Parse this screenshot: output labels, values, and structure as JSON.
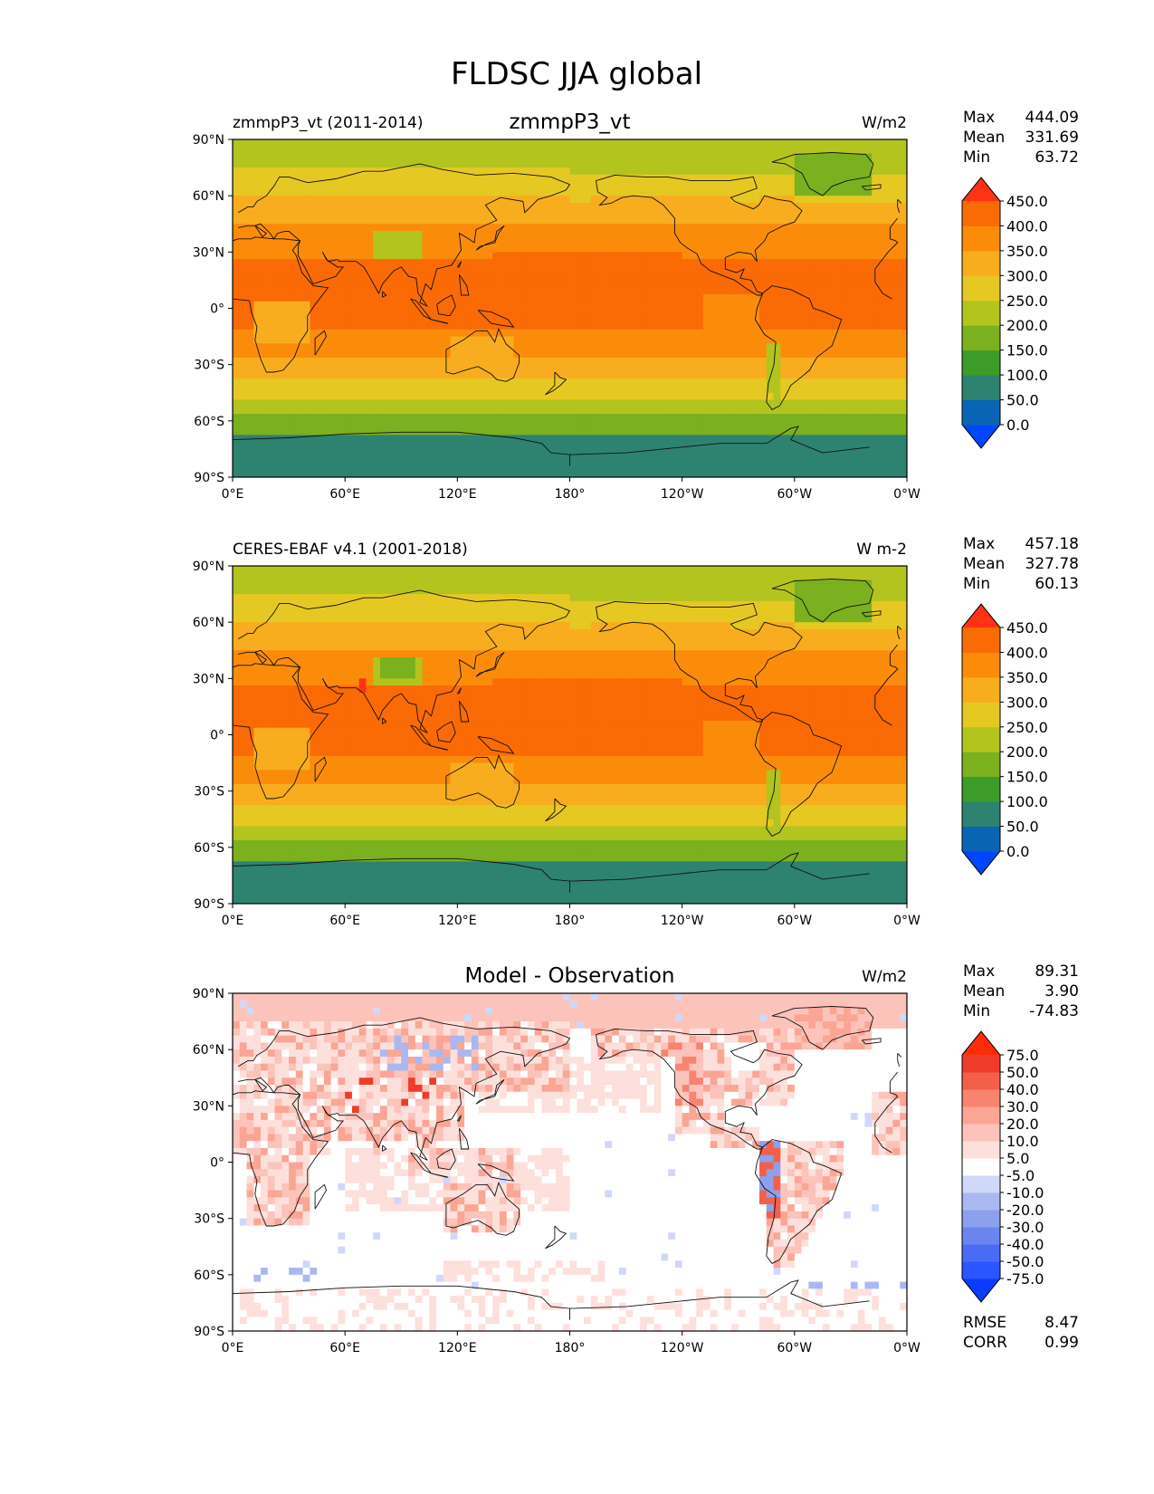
{
  "title": "FLDSC JJA global",
  "chart_data": [
    {
      "type": "heatmap",
      "id": "test",
      "title": "zmmpP3_vt",
      "left_label": "zmmpP3_vt (2011-2014)",
      "right_label": "W/m2",
      "stats": {
        "max_label": "Max",
        "max": "444.09",
        "mean_label": "Mean",
        "mean": "331.69",
        "min_label": "Min",
        "min": "63.72"
      },
      "colorbar": {
        "levels": [
          "0.0",
          "50.0",
          "100.0",
          "150.0",
          "200.0",
          "250.0",
          "300.0",
          "350.0",
          "400.0",
          "450.0"
        ],
        "colors": [
          "#0046ff",
          "#0a64b4",
          "#2e8270",
          "#3c9b29",
          "#7bb01f",
          "#b3c41e",
          "#e6c823",
          "#f8ad1e",
          "#fa8c0a",
          "#fa6a05",
          "#ff3214"
        ]
      },
      "xticks": [
        "0°E",
        "60°E",
        "120°E",
        "180°",
        "120°W",
        "60°W",
        "0°W"
      ],
      "yticks": [
        "90°N",
        "60°N",
        "30°N",
        "0°",
        "30°S",
        "60°S",
        "90°S"
      ],
      "xlim": [
        0,
        360
      ],
      "ylim": [
        -90,
        90
      ]
    },
    {
      "type": "heatmap",
      "id": "ref",
      "title": "",
      "left_label": "CERES-EBAF v4.1 (2001-2018)",
      "right_label": "W m-2",
      "stats": {
        "max_label": "Max",
        "max": "457.18",
        "mean_label": "Mean",
        "mean": "327.78",
        "min_label": "Min",
        "min": "60.13"
      },
      "colorbar": {
        "levels": [
          "0.0",
          "50.0",
          "100.0",
          "150.0",
          "200.0",
          "250.0",
          "300.0",
          "350.0",
          "400.0",
          "450.0"
        ],
        "colors": [
          "#0046ff",
          "#0a64b4",
          "#2e8270",
          "#3c9b29",
          "#7bb01f",
          "#b3c41e",
          "#e6c823",
          "#f8ad1e",
          "#fa8c0a",
          "#fa6a05",
          "#ff3214"
        ]
      },
      "xticks": [
        "0°E",
        "60°E",
        "120°E",
        "180°",
        "120°W",
        "60°W",
        "0°W"
      ],
      "yticks": [
        "90°N",
        "60°N",
        "30°N",
        "0°",
        "30°S",
        "60°S",
        "90°S"
      ],
      "xlim": [
        0,
        360
      ],
      "ylim": [
        -90,
        90
      ]
    },
    {
      "type": "heatmap",
      "id": "diff",
      "title": "Model - Observation",
      "left_label": "",
      "right_label": "W/m2",
      "stats": {
        "max_label": "Max",
        "max": "89.31",
        "mean_label": "Mean",
        "mean": "3.90",
        "min_label": "Min",
        "min": "-74.83"
      },
      "extra_stats": {
        "rmse_label": "RMSE",
        "rmse": "8.47",
        "corr_label": "CORR",
        "corr": "0.99"
      },
      "colorbar": {
        "levels": [
          "-75.0",
          "-50.0",
          "-40.0",
          "-30.0",
          "-20.0",
          "-10.0",
          "-5.0",
          "5.0",
          "10.0",
          "20.0",
          "30.0",
          "40.0",
          "50.0",
          "75.0"
        ],
        "colors": [
          "#0a3cff",
          "#2a55ff",
          "#4a6cf5",
          "#6a86ee",
          "#8ca0ee",
          "#aab8f2",
          "#d0d8fa",
          "#ffffff",
          "#fde0dc",
          "#fcc3ba",
          "#fba595",
          "#f8836f",
          "#f35f4a",
          "#ef3c2a",
          "#ff2c0a"
        ]
      },
      "xticks": [
        "0°E",
        "60°E",
        "120°E",
        "180°",
        "120°W",
        "60°W",
        "0°W"
      ],
      "yticks": [
        "90°N",
        "60°N",
        "30°N",
        "0°",
        "30°S",
        "60°S",
        "90°S"
      ],
      "xlim": [
        0,
        360
      ],
      "ylim": [
        -90,
        90
      ]
    }
  ]
}
